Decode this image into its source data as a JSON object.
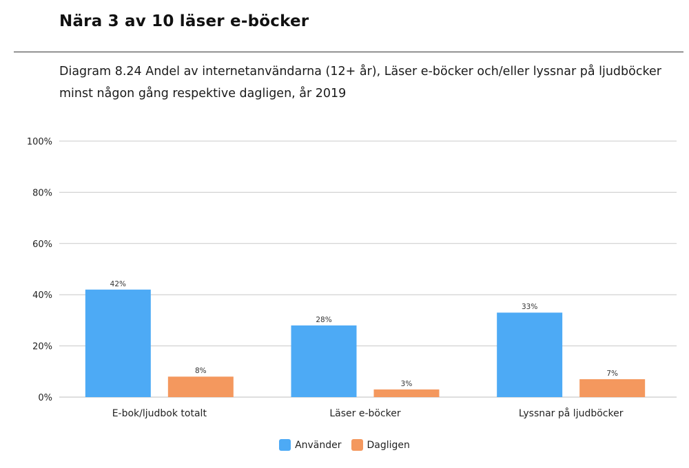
{
  "header": {
    "title": "Nära 3 av 10 läser e-böcker",
    "caption": "Diagram 8.24 Andel av internetanvändarna (12+ år), Läser e-böcker och/eller lyssnar på ljudböcker minst någon gång respektive dagligen, år 2019"
  },
  "chart_data": {
    "type": "bar",
    "categories": [
      "E-bok/ljudbok totalt",
      "Läser e-böcker",
      "Lyssnar på ljudböcker"
    ],
    "series": [
      {
        "name": "Använder",
        "values": [
          42,
          28,
          33
        ],
        "labels": [
          "42%",
          "28%",
          "33%"
        ],
        "color": "#4DAAF5"
      },
      {
        "name": "Dagligen",
        "values": [
          8,
          3,
          7
        ],
        "labels": [
          "8%",
          "3%",
          "7%"
        ],
        "color": "#F4985E"
      }
    ],
    "ylim": [
      0,
      100
    ],
    "yticks": [
      0,
      20,
      40,
      60,
      80,
      100
    ],
    "ytick_labels": [
      "0%",
      "20%",
      "40%",
      "60%",
      "80%",
      "100%"
    ],
    "grid": true,
    "legend": "bottom-center"
  }
}
